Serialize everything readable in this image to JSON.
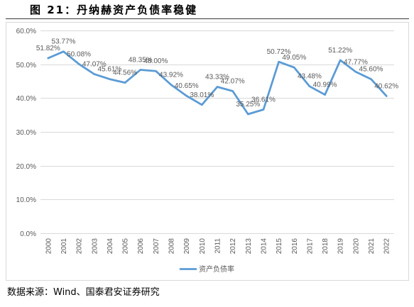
{
  "figure": {
    "caption": "图 21：丹纳赫资产负债率稳健",
    "source": "数据来源：Wind、国泰君安证券研究"
  },
  "chart_data": {
    "type": "line",
    "categories": [
      "2000",
      "2001",
      "2002",
      "2003",
      "2004",
      "2005",
      "2006",
      "2007",
      "2008",
      "2009",
      "2010",
      "2011",
      "2012",
      "2013",
      "2014",
      "2015",
      "2016",
      "2017",
      "2018",
      "2019",
      "2020",
      "2021",
      "2022"
    ],
    "series": [
      {
        "name": "资产负债率",
        "color": "#5B9BD5",
        "values": [
          51.82,
          53.77,
          50.08,
          47.07,
          45.61,
          44.56,
          48.35,
          48.0,
          43.92,
          40.65,
          38.01,
          43.33,
          42.07,
          35.25,
          36.61,
          50.72,
          49.05,
          43.48,
          40.99,
          51.22,
          47.77,
          45.6,
          40.62
        ],
        "labels": [
          "51.82%",
          "53.77%",
          "50.08%",
          "47.07%",
          "45.61%",
          "44.56%",
          "48.35%",
          "48.00%",
          "43.92%",
          "40.65%",
          "38.01%",
          "43.33%",
          "42.07%",
          "35.25%",
          "36.61%",
          "50.72%",
          "49.05%",
          "43.48%",
          "40.99%",
          "51.22%",
          "47.77%",
          "45.60%",
          "40.62%"
        ]
      }
    ],
    "ylim": [
      0,
      60
    ],
    "yticks": [
      0,
      10,
      20,
      30,
      40,
      50,
      60
    ],
    "ytick_labels": [
      "0.0%",
      "10.0%",
      "20.0%",
      "30.0%",
      "40.0%",
      "50.0%",
      "60.0%"
    ],
    "grid": true,
    "legend_position": "bottom"
  }
}
